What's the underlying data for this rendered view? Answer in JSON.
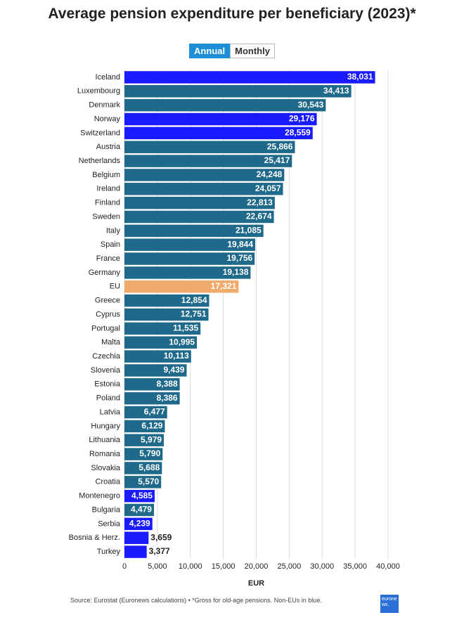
{
  "chart_data": {
    "type": "bar",
    "orientation": "horizontal",
    "title": "Average pension expenditure per beneficiary (2023)*",
    "buttons": [
      "Annual",
      "Monthly"
    ],
    "categories": [
      "Iceland",
      "Luxembourg",
      "Denmark",
      "Norway",
      "Switzerland",
      "Austria",
      "Netherlands",
      "Belgium",
      "Ireland",
      "Finland",
      "Sweden",
      "Italy",
      "Spain",
      "France",
      "Germany",
      "EU",
      "Greece",
      "Cyprus",
      "Portugal",
      "Malta",
      "Czechia",
      "Slovenia",
      "Estonia",
      "Poland",
      "Latvia",
      "Hungary",
      "Lithuania",
      "Romania",
      "Slovakia",
      "Croatia",
      "Montenegro",
      "Bulgaria",
      "Serbia",
      "Bosnia & Herz.",
      "Turkey"
    ],
    "values": [
      38031,
      34413,
      30543,
      29176,
      28559,
      25866,
      25417,
      24248,
      24057,
      22813,
      22674,
      21085,
      19844,
      19756,
      19138,
      17321,
      12854,
      12751,
      11535,
      10995,
      10113,
      9439,
      8388,
      8386,
      6477,
      6129,
      5979,
      5790,
      5688,
      5570,
      4585,
      4479,
      4239,
      3659,
      3377
    ],
    "value_labels": [
      "38,031",
      "34,413",
      "30,543",
      "29,176",
      "28,559",
      "25,866",
      "25,417",
      "24,248",
      "24,057",
      "22,813",
      "22,674",
      "21,085",
      "19,844",
      "19,756",
      "19,138",
      "17,321",
      "12,854",
      "12,751",
      "11,535",
      "10,995",
      "10,113",
      "9,439",
      "8,388",
      "8,386",
      "6,477",
      "6,129",
      "5,979",
      "5,790",
      "5,688",
      "5,570",
      "4,585",
      "4,479",
      "4,239",
      "3,659",
      "3,377"
    ],
    "colors": [
      "#1a1aff",
      "#1f6a8a",
      "#1f6a8a",
      "#1a1aff",
      "#1a1aff",
      "#1f6a8a",
      "#1f6a8a",
      "#1f6a8a",
      "#1f6a8a",
      "#1f6a8a",
      "#1f6a8a",
      "#1f6a8a",
      "#1f6a8a",
      "#1f6a8a",
      "#1f6a8a",
      "#f0aa6c",
      "#1f6a8a",
      "#1f6a8a",
      "#1f6a8a",
      "#1f6a8a",
      "#1f6a8a",
      "#1f6a8a",
      "#1f6a8a",
      "#1f6a8a",
      "#1f6a8a",
      "#1f6a8a",
      "#1f6a8a",
      "#1f6a8a",
      "#1f6a8a",
      "#1f6a8a",
      "#1a1aff",
      "#1f6a8a",
      "#1a1aff",
      "#1a1aff",
      "#1a1aff"
    ],
    "xlim": [
      0,
      40000
    ],
    "xticks": [
      0,
      {
        "value": 5000,
        "label": "5,000"
      },
      {
        "value": 10000,
        "label": "10,000"
      },
      {
        "value": 15000,
        "label": "15,000"
      },
      {
        "value": 20000,
        "label": "20,000"
      },
      {
        "value": 25000,
        "label": "25,000"
      },
      {
        "value": 30000,
        "label": "30,000"
      },
      {
        "value": 35000,
        "label": "35,000"
      },
      {
        "value": 40000,
        "label": "40,000"
      }
    ],
    "xlabel": "EUR",
    "grid": true,
    "source": "Source: Eurostat (Euronews calculations) • *Gross for old-age pensions. Non-EUs in blue.",
    "logo": "euronews."
  }
}
